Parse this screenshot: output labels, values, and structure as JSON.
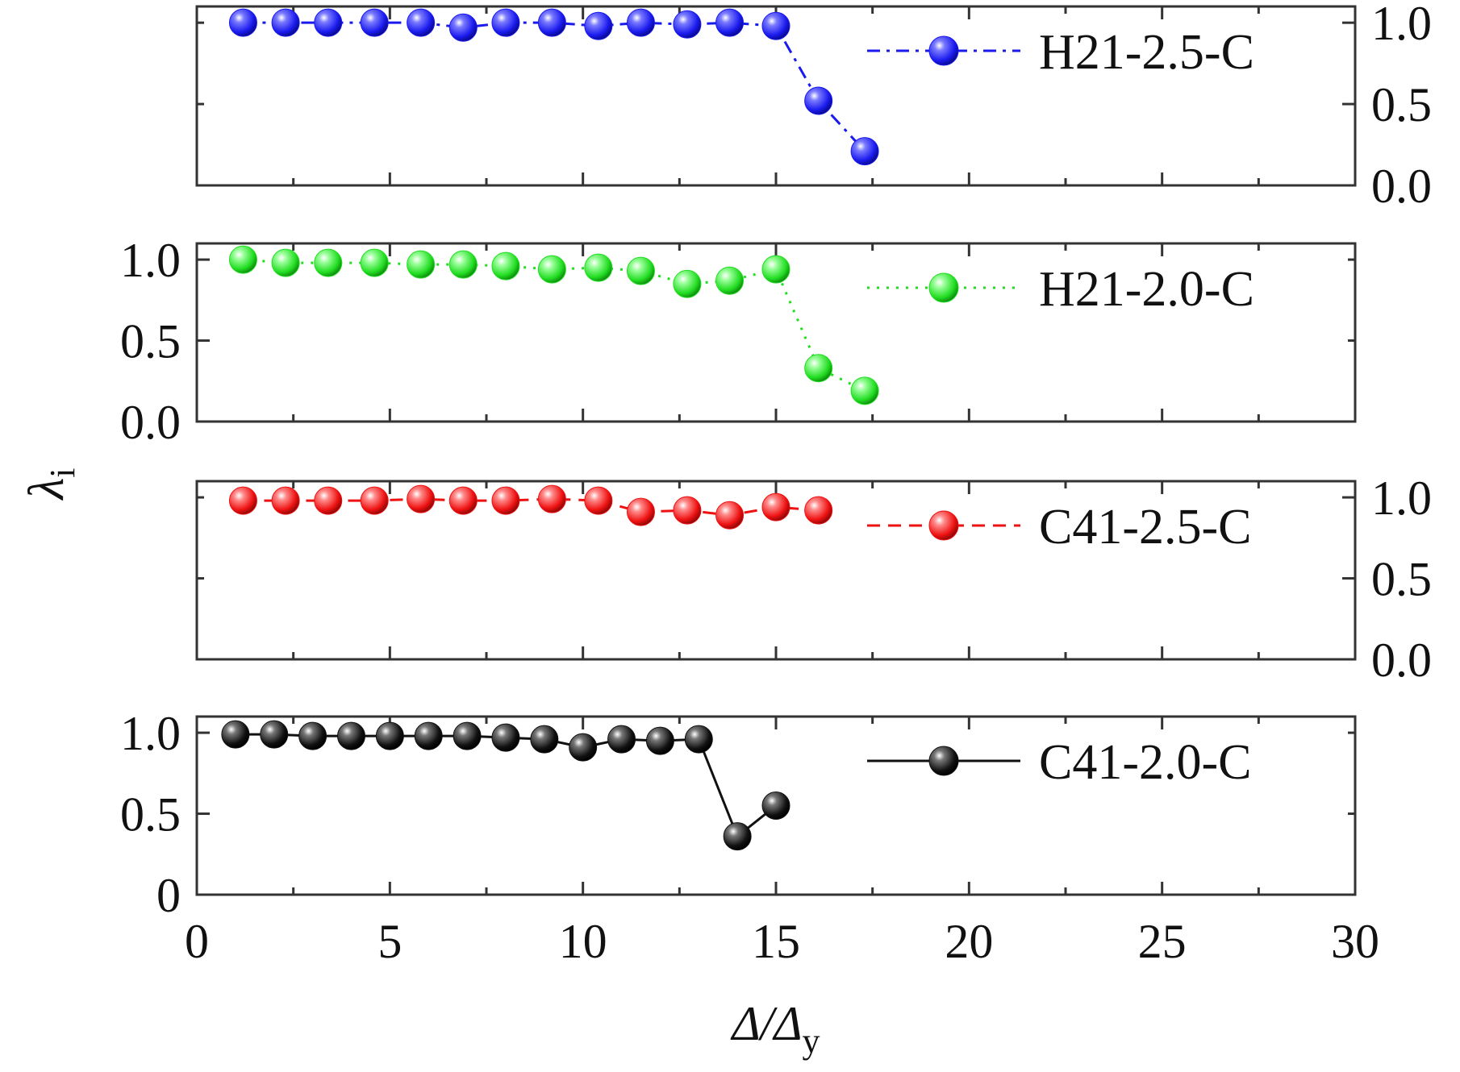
{
  "chart_data": [
    {
      "type": "scatter",
      "title": "",
      "xlabel": "",
      "ylabel": "",
      "xlim": [
        0,
        30
      ],
      "ylim": [
        0.0,
        1.1
      ],
      "yticks": [
        "0.0",
        "0.5",
        "1.0"
      ],
      "yaxis_side": "right",
      "legend_position": "top-right",
      "grid": false,
      "series": [
        {
          "name": "H21-2.5-C",
          "color": "#1a1aee",
          "line_style": "dash-dot",
          "x": [
            1.2,
            2.3,
            3.4,
            4.6,
            5.8,
            6.9,
            8.0,
            9.2,
            10.4,
            11.5,
            12.7,
            13.8,
            15.0,
            16.1,
            17.3
          ],
          "y": [
            1.0,
            1.0,
            1.0,
            1.0,
            1.0,
            0.97,
            1.0,
            1.0,
            0.98,
            1.0,
            0.99,
            1.0,
            0.98,
            0.52,
            0.21
          ]
        }
      ]
    },
    {
      "type": "scatter",
      "title": "",
      "xlabel": "",
      "ylabel": "",
      "xlim": [
        0,
        30
      ],
      "ylim": [
        0.0,
        1.1
      ],
      "yticks": [
        "0.0",
        "0.5",
        "1.0"
      ],
      "yaxis_side": "left",
      "legend_position": "top-right",
      "grid": false,
      "series": [
        {
          "name": "H21-2.0-C",
          "color": "#22dd22",
          "line_style": "dotted",
          "x": [
            1.2,
            2.3,
            3.4,
            4.6,
            5.8,
            6.9,
            8.0,
            9.2,
            10.4,
            11.5,
            12.7,
            13.8,
            15.0,
            16.1,
            17.3
          ],
          "y": [
            1.0,
            0.98,
            0.98,
            0.98,
            0.97,
            0.97,
            0.96,
            0.94,
            0.95,
            0.93,
            0.85,
            0.87,
            0.94,
            0.33,
            0.19
          ]
        }
      ]
    },
    {
      "type": "scatter",
      "title": "",
      "xlabel": "",
      "ylabel": "",
      "xlim": [
        0,
        30
      ],
      "ylim": [
        0.0,
        1.1
      ],
      "yticks": [
        "0.0",
        "0.5",
        "1.0"
      ],
      "yaxis_side": "right",
      "legend_position": "top-right",
      "grid": false,
      "series": [
        {
          "name": "C41-2.5-C",
          "color": "#ee1111",
          "line_style": "dashed",
          "x": [
            1.2,
            2.3,
            3.4,
            4.6,
            5.8,
            6.9,
            8.0,
            9.2,
            10.4,
            11.5,
            12.7,
            13.8,
            15.0,
            16.1
          ],
          "y": [
            0.98,
            0.98,
            0.98,
            0.98,
            0.99,
            0.98,
            0.98,
            0.99,
            0.98,
            0.91,
            0.92,
            0.89,
            0.94,
            0.92
          ]
        }
      ]
    },
    {
      "type": "scatter",
      "title": "",
      "xlabel": "Δ/Δy",
      "ylabel": "",
      "xlim": [
        0,
        30
      ],
      "ylim": [
        0,
        1.1
      ],
      "xticks": [
        "0",
        "5",
        "10",
        "15",
        "20",
        "25",
        "30"
      ],
      "yticks": [
        "0",
        "0.5",
        "1.0"
      ],
      "yaxis_side": "left",
      "legend_position": "top-right",
      "grid": false,
      "series": [
        {
          "name": "C41-2.0-C",
          "color": "#111111",
          "line_style": "solid",
          "x": [
            1,
            2,
            3,
            4,
            5,
            6,
            7,
            8,
            9,
            10,
            11,
            12,
            13,
            14,
            15
          ],
          "y": [
            0.99,
            0.99,
            0.98,
            0.98,
            0.98,
            0.98,
            0.98,
            0.97,
            0.96,
            0.91,
            0.96,
            0.95,
            0.96,
            0.36,
            0.55
          ]
        }
      ]
    }
  ],
  "figure": {
    "shared_ylabel": "λi",
    "shared_ylabel_base": "λ",
    "shared_ylabel_sub": "i",
    "xlabel_base": "Δ/Δ",
    "xlabel_sub": "y"
  }
}
